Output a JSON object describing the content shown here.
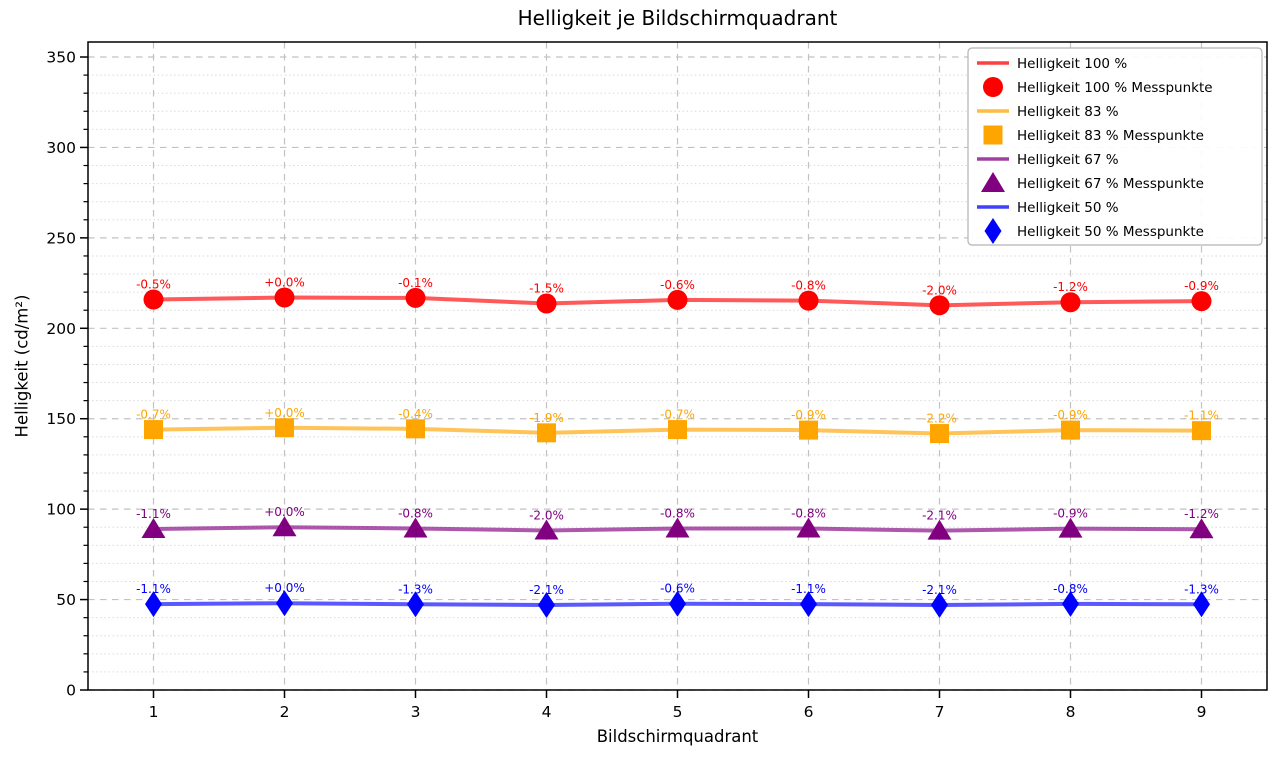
{
  "figure": {
    "background": "#ffffff",
    "spine_color": "#000000",
    "grid_major_color": "#c2c2c2",
    "grid_minor_color": "#dadada"
  },
  "chart_data": {
    "type": "line",
    "title": "Helligkeit je Bildschirmquadrant",
    "xlabel": "Bildschirmquadrant",
    "ylabel": "Helligkeit (cd/m²)",
    "x": [
      1,
      2,
      3,
      4,
      5,
      6,
      7,
      8,
      9
    ],
    "xticks": [
      "1",
      "2",
      "3",
      "4",
      "5",
      "6",
      "7",
      "8",
      "9"
    ],
    "xlim": [
      0.5,
      9.5
    ],
    "ylim": [
      0,
      358.3
    ],
    "yticks_major": [
      0,
      50,
      100,
      150,
      200,
      250,
      300,
      350
    ],
    "y_minor_step": 10,
    "grid": {
      "major": "dashed",
      "minor": "dotted-horizontal",
      "visible": true
    },
    "legend": {
      "position": "upper-right"
    },
    "series": [
      {
        "name": "Helligkeit 100 %",
        "points_name": "Helligkeit 100 % Messpunkte",
        "color": "#ff0000",
        "marker": "circle",
        "values": [
          215.9,
          217.0,
          216.8,
          213.7,
          215.7,
          215.3,
          212.7,
          214.4,
          215.0
        ],
        "point_labels": [
          "-0.5%",
          "+0.0%",
          "-0.1%",
          "-1.5%",
          "-0.6%",
          "-0.8%",
          "-2.0%",
          "-1.2%",
          "-0.9%"
        ]
      },
      {
        "name": "Helligkeit 83 %",
        "points_name": "Helligkeit 83 % Messpunkte",
        "color": "#ffa500",
        "marker": "square",
        "values": [
          144.0,
          145.0,
          144.4,
          142.2,
          144.0,
          143.7,
          141.8,
          143.7,
          143.4
        ],
        "point_labels": [
          "-0.7%",
          "+0.0%",
          "-0.4%",
          "-1.9%",
          "-0.7%",
          "-0.9%",
          "-2.2%",
          "-0.9%",
          "-1.1%"
        ]
      },
      {
        "name": "Helligkeit 67 %",
        "points_name": "Helligkeit 67 % Messpunkte",
        "color": "#800080",
        "marker": "triangle",
        "values": [
          89.0,
          90.0,
          89.3,
          88.2,
          89.3,
          89.3,
          88.1,
          89.2,
          88.9
        ],
        "point_labels": [
          "-1.1%",
          "+0.0%",
          "-0.8%",
          "-2.0%",
          "-0.8%",
          "-0.8%",
          "-2.1%",
          "-0.9%",
          "-1.2%"
        ]
      },
      {
        "name": "Helligkeit 50 %",
        "points_name": "Helligkeit 50 % Messpunkte",
        "color": "#0000ff",
        "marker": "diamond",
        "values": [
          47.5,
          48.0,
          47.4,
          47.0,
          47.7,
          47.5,
          47.0,
          47.6,
          47.4
        ],
        "point_labels": [
          "-1.1%",
          "+0.0%",
          "-1.3%",
          "-2.1%",
          "-0.6%",
          "-1.1%",
          "-2.1%",
          "-0.8%",
          "-1.3%"
        ]
      }
    ]
  }
}
